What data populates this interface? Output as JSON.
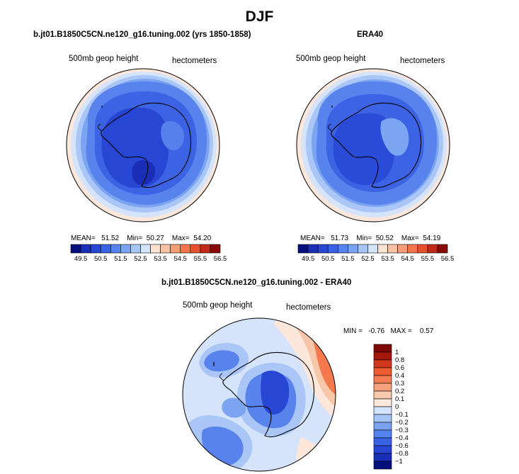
{
  "title": "DJF",
  "colors": {
    "ramp": [
      "#05107e",
      "#1a2fb8",
      "#2846d4",
      "#3a62e6",
      "#5482ee",
      "#7aa4f2",
      "#a6c6f8",
      "#d4e4fb",
      "#fbe3d2",
      "#f7c1a3",
      "#f69c76",
      "#f4744c",
      "#e6502d",
      "#c12a18",
      "#8a0a07"
    ],
    "diff_ramp": [
      "#05107e",
      "#1a2fb8",
      "#2846d4",
      "#3a62e6",
      "#5482ee",
      "#7aa4f2",
      "#a6c6f8",
      "#d4e4fb",
      "#fde9dc",
      "#f8c9ad",
      "#f6a27e",
      "#f47c54",
      "#ed5b32",
      "#d2361c",
      "#a6180c",
      "#7d0806"
    ],
    "continent": "#000000"
  },
  "chart_data": [
    {
      "type": "contour-map",
      "panel_title": "b.jt01.B1850C5CN.ne120_g16.tuning.002 (yrs 1850-1858)",
      "variable": "500mb geop height",
      "units": "hectometers",
      "stats": {
        "mean_label": "MEAN=",
        "mean": "51.52",
        "min_label": "Min=",
        "min": "50.27",
        "max_label": "Max=",
        "max": "54.20"
      },
      "colorbar_ticks": [
        "49.5",
        "50.5",
        "51.5",
        "52.5",
        "53.5",
        "54.5",
        "55.5",
        "56.5"
      ]
    },
    {
      "type": "contour-map",
      "panel_title": "ERA40",
      "variable": "500mb geop height",
      "units": "hectometers",
      "stats": {
        "mean_label": "MEAN=",
        "mean": "51.73",
        "min_label": "Min=",
        "min": "50.52",
        "max_label": "Max=",
        "max": "54.19"
      },
      "colorbar_ticks": [
        "49.5",
        "50.5",
        "51.5",
        "52.5",
        "53.5",
        "54.5",
        "55.5",
        "56.5"
      ]
    },
    {
      "type": "contour-map",
      "panel_title": "b.jt01.B1850C5CN.ne120_g16.tuning.002 - ERA40",
      "variable": "500mb geop height",
      "units": "hectometers",
      "stats": {
        "min_label": "MIN =",
        "min": "-0.76",
        "max_label": "MAX =",
        "max": "0.57"
      },
      "colorbar_ticks": [
        "1",
        "0.8",
        "0.6",
        "0.4",
        "0.3",
        "0.2",
        "0.1",
        "0",
        "−0.1",
        "−0.2",
        "−0.3",
        "−0.4",
        "−0.6",
        "−0.8",
        "−1"
      ]
    }
  ]
}
